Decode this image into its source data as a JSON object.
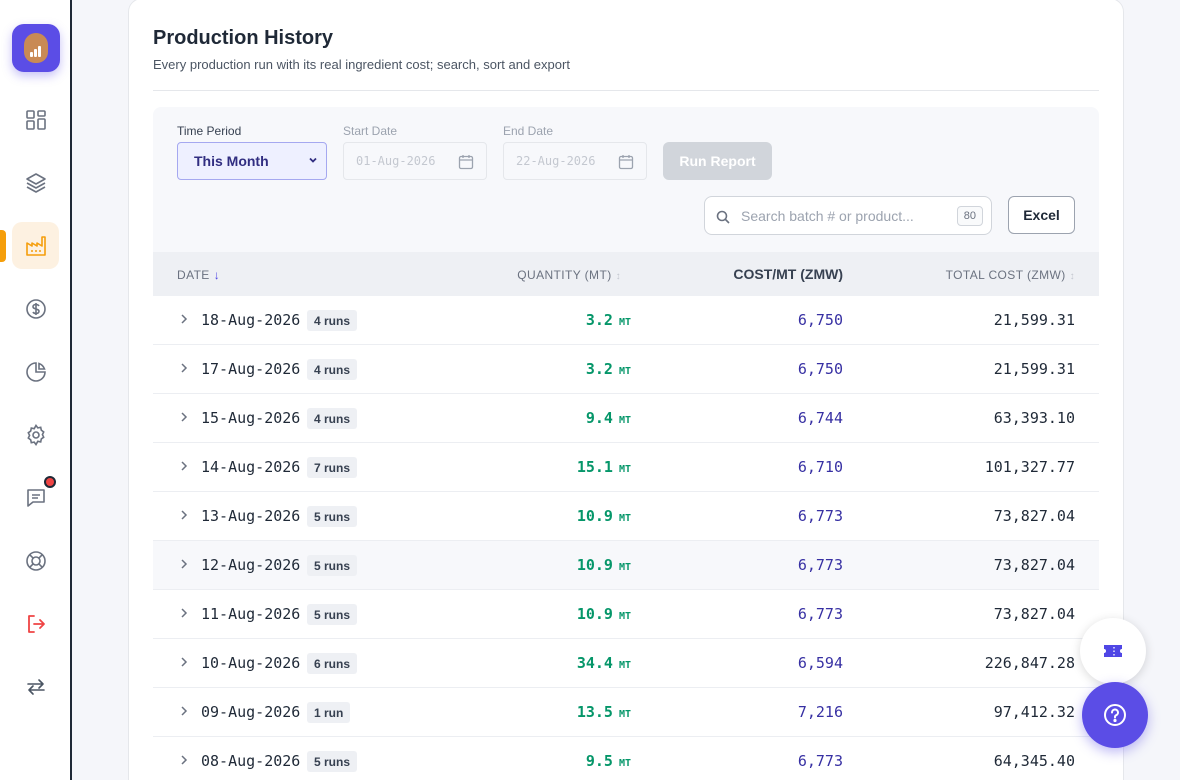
{
  "sidebar": {
    "items": [
      {
        "icon": "dashboard-icon"
      },
      {
        "icon": "layers-icon"
      },
      {
        "icon": "factory-icon",
        "active": true
      },
      {
        "icon": "dollar-icon"
      },
      {
        "icon": "pie-chart-icon"
      },
      {
        "icon": "gear-icon"
      },
      {
        "icon": "message-icon",
        "notification": true
      },
      {
        "icon": "lifebuoy-icon"
      },
      {
        "icon": "logout-icon"
      },
      {
        "icon": "switch-icon"
      }
    ]
  },
  "header": {
    "title": "Production History",
    "subtitle": "Every production run with its real ingredient cost; search, sort and export"
  },
  "filters": {
    "time_period_label": "Time Period",
    "time_period_value": "This Month",
    "start_date_label": "Start Date",
    "start_date_value": "01-Aug-2026",
    "end_date_label": "End Date",
    "end_date_value": "22-Aug-2026",
    "run_report_label": "Run Report",
    "search_placeholder": "Search batch # or product...",
    "result_count": "80",
    "excel_label": "Excel"
  },
  "table": {
    "columns": {
      "date": "DATE",
      "quantity": "QUANTITY (MT)",
      "cost_per_mt": "COST/MT (ZMW)",
      "total_cost": "TOTAL COST (ZMW)"
    },
    "unit": "MT",
    "rows": [
      {
        "date": "18-Aug-2026",
        "runs": "4 runs",
        "qty": "3.2",
        "cost": "6,750",
        "total": "21,599.31"
      },
      {
        "date": "17-Aug-2026",
        "runs": "4 runs",
        "qty": "3.2",
        "cost": "6,750",
        "total": "21,599.31"
      },
      {
        "date": "15-Aug-2026",
        "runs": "4 runs",
        "qty": "9.4",
        "cost": "6,744",
        "total": "63,393.10"
      },
      {
        "date": "14-Aug-2026",
        "runs": "7 runs",
        "qty": "15.1",
        "cost": "6,710",
        "total": "101,327.77"
      },
      {
        "date": "13-Aug-2026",
        "runs": "5 runs",
        "qty": "10.9",
        "cost": "6,773",
        "total": "73,827.04"
      },
      {
        "date": "12-Aug-2026",
        "runs": "5 runs",
        "qty": "10.9",
        "cost": "6,773",
        "total": "73,827.04",
        "highlighted": true
      },
      {
        "date": "11-Aug-2026",
        "runs": "5 runs",
        "qty": "10.9",
        "cost": "6,773",
        "total": "73,827.04"
      },
      {
        "date": "10-Aug-2026",
        "runs": "6 runs",
        "qty": "34.4",
        "cost": "6,594",
        "total": "226,847.28"
      },
      {
        "date": "09-Aug-2026",
        "runs": "1 run",
        "qty": "13.5",
        "cost": "7,216",
        "total": "97,412.32"
      },
      {
        "date": "08-Aug-2026",
        "runs": "5 runs",
        "qty": "9.5",
        "cost": "6,773",
        "total": "64,345.40"
      }
    ]
  },
  "colors": {
    "brand": "#5b4de6",
    "active_nav": "#f59e0b",
    "quantity": "#059669",
    "cost": "#3730a3",
    "logout": "#ef4444"
  },
  "floating": {
    "ticket_icon": "ticket-icon",
    "help_icon": "help-icon"
  }
}
